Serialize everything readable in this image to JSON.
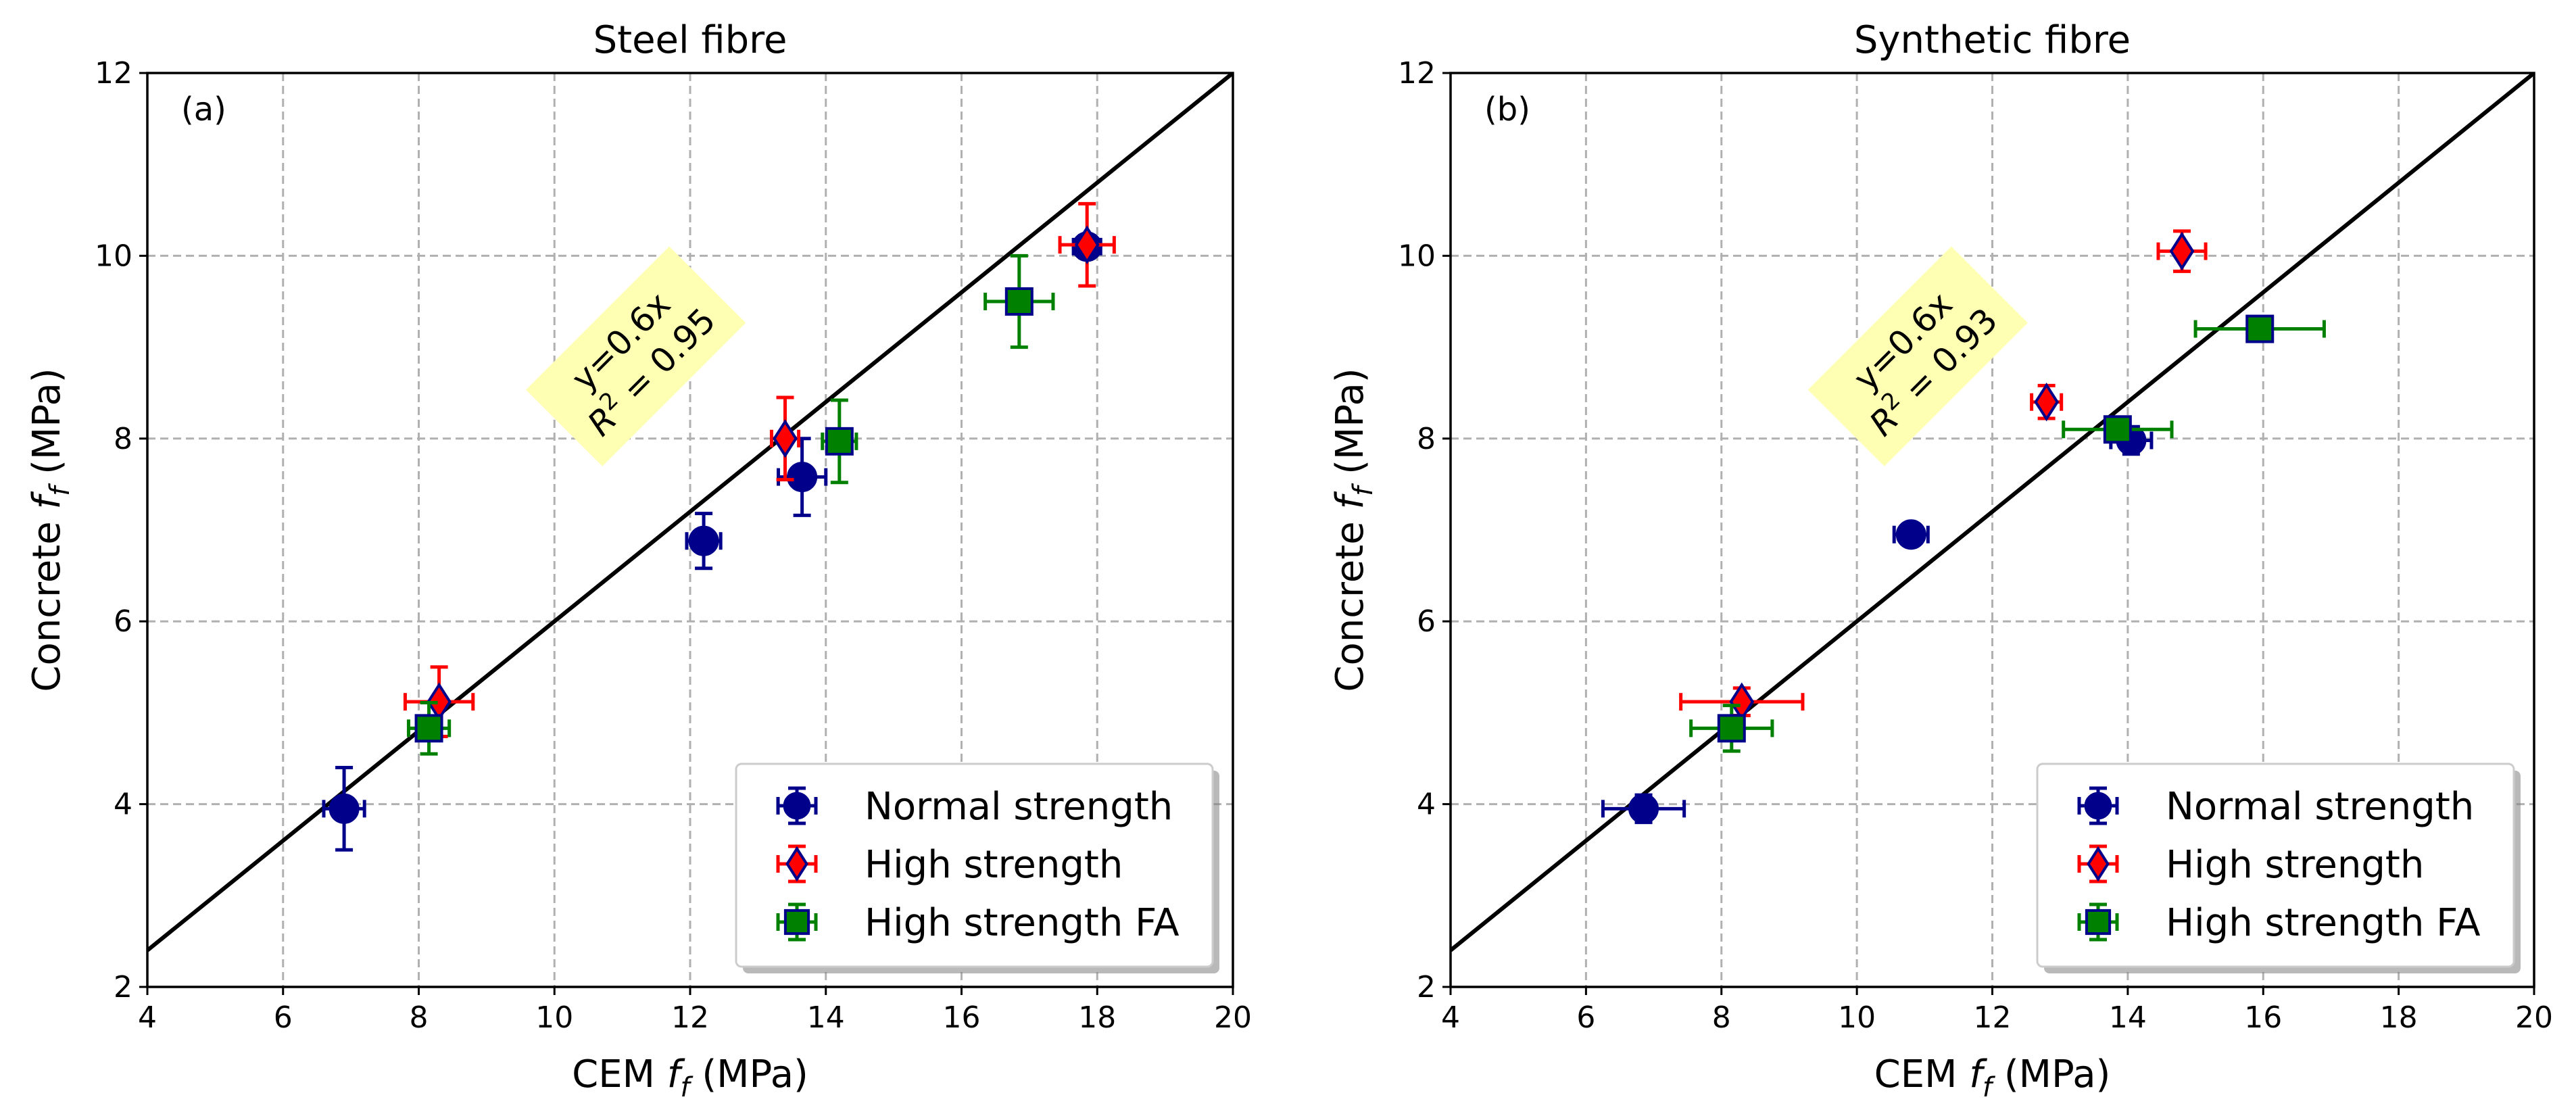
{
  "colors": {
    "normal_strength": "#00008b",
    "high_strength": "#ff0000",
    "high_strength_fa": "#008000",
    "marker_edge": "#00008b",
    "annotation_bg": "#ffffb3",
    "grid": "#b0b0b0"
  },
  "chart_data": [
    {
      "type": "scatter",
      "panel_label": "(a)",
      "title": "Steel fibre",
      "xlabel": {
        "prefix": "CEM ",
        "var": "f",
        "sub": "f",
        "suffix": " (MPa)"
      },
      "ylabel": {
        "prefix": "Concrete ",
        "var": "f",
        "sub": "f",
        "suffix": " (MPa)"
      },
      "xlim": [
        4,
        20
      ],
      "ylim": [
        2,
        12
      ],
      "xticks": [
        4,
        6,
        8,
        10,
        12,
        14,
        16,
        18,
        20
      ],
      "yticks": [
        2,
        4,
        6,
        8,
        10,
        12
      ],
      "grid": true,
      "legend_position": "lower-right",
      "fit": {
        "slope": 0.6,
        "equation": "y=0.6x",
        "r2_label": "R",
        "r2_exp": "2",
        "r2_value": " = 0.95",
        "label_x": 11.2,
        "label_y": 8.9
      },
      "series": [
        {
          "name": "Normal strength",
          "marker": "circle",
          "color_key": "normal_strength",
          "points": [
            {
              "x": 6.9,
              "y": 3.95,
              "xerr": 0.3,
              "yerr": 0.45
            },
            {
              "x": 12.2,
              "y": 6.88,
              "xerr": 0.25,
              "yerr": 0.3
            },
            {
              "x": 13.65,
              "y": 7.58,
              "xerr": 0.35,
              "yerr": 0.42
            },
            {
              "x": 17.85,
              "y": 10.1,
              "xerr": 0.2,
              "yerr": 0.12
            }
          ]
        },
        {
          "name": "High strength",
          "marker": "diamond",
          "color_key": "high_strength",
          "points": [
            {
              "x": 8.3,
              "y": 5.12,
              "xerr": 0.5,
              "yerr": 0.38
            },
            {
              "x": 13.4,
              "y": 8.0,
              "xerr": 0.2,
              "yerr": 0.45
            },
            {
              "x": 17.85,
              "y": 10.12,
              "xerr": 0.4,
              "yerr": 0.45
            }
          ]
        },
        {
          "name": "High strength FA",
          "marker": "square",
          "color_key": "high_strength_fa",
          "points": [
            {
              "x": 8.15,
              "y": 4.83,
              "xerr": 0.3,
              "yerr": 0.28
            },
            {
              "x": 14.2,
              "y": 7.97,
              "xerr": 0.25,
              "yerr": 0.45
            },
            {
              "x": 16.85,
              "y": 9.5,
              "xerr": 0.5,
              "yerr": 0.5
            }
          ]
        }
      ]
    },
    {
      "type": "scatter",
      "panel_label": "(b)",
      "title": "Synthetic fibre",
      "xlabel": {
        "prefix": "CEM ",
        "var": "f",
        "sub": "f",
        "suffix": " (MPa)"
      },
      "ylabel": {
        "prefix": "Concrete ",
        "var": "f",
        "sub": "f",
        "suffix": " (MPa)"
      },
      "xlim": [
        4,
        20
      ],
      "ylim": [
        2,
        12
      ],
      "xticks": [
        4,
        6,
        8,
        10,
        12,
        14,
        16,
        18,
        20
      ],
      "yticks": [
        2,
        4,
        6,
        8,
        10,
        12
      ],
      "grid": true,
      "legend_position": "lower-right",
      "fit": {
        "slope": 0.6,
        "equation": "y=0.6x",
        "r2_label": "R",
        "r2_exp": "2",
        "r2_value": " = 0.93",
        "label_x": 10.9,
        "label_y": 8.9
      },
      "series": [
        {
          "name": "Normal strength",
          "marker": "circle",
          "color_key": "normal_strength",
          "points": [
            {
              "x": 6.85,
              "y": 3.95,
              "xerr": 0.6,
              "yerr": 0.15
            },
            {
              "x": 10.8,
              "y": 6.95,
              "xerr": 0.25,
              "yerr": 0.08
            },
            {
              "x": 14.05,
              "y": 7.98,
              "xerr": 0.3,
              "yerr": 0.15
            }
          ]
        },
        {
          "name": "High strength",
          "marker": "diamond",
          "color_key": "high_strength",
          "points": [
            {
              "x": 8.3,
              "y": 5.12,
              "xerr": 0.9,
              "yerr": 0.15
            },
            {
              "x": 12.8,
              "y": 8.4,
              "xerr": 0.22,
              "yerr": 0.18
            },
            {
              "x": 14.8,
              "y": 10.05,
              "xerr": 0.35,
              "yerr": 0.22
            }
          ]
        },
        {
          "name": "High strength FA",
          "marker": "square",
          "color_key": "high_strength_fa",
          "points": [
            {
              "x": 8.15,
              "y": 4.83,
              "xerr": 0.6,
              "yerr": 0.25
            },
            {
              "x": 13.85,
              "y": 8.1,
              "xerr": 0.8,
              "yerr": 0.12
            },
            {
              "x": 15.95,
              "y": 9.2,
              "xerr": 0.95,
              "yerr": 0.05
            }
          ]
        }
      ]
    }
  ]
}
